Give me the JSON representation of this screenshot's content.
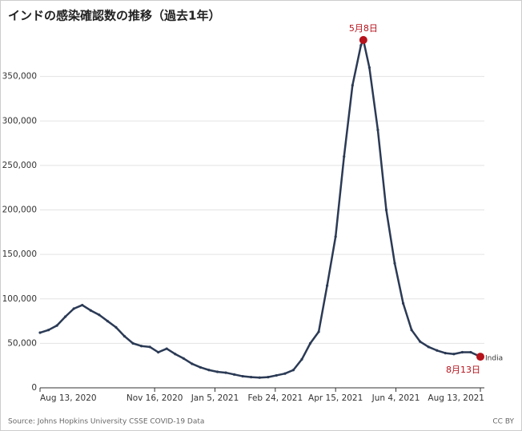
{
  "chart_data": {
    "type": "line",
    "title": "インドの感染確認数の推移（過去1年）",
    "source": "Source: Johns Hopkins University CSSE COVID-19 Data",
    "license": "CC BY",
    "xlim": [
      "2020-08-13",
      "2021-08-13"
    ],
    "xticks": [
      {
        "value": "2020-08-13",
        "label": "Aug 13, 2020"
      },
      {
        "value": "2020-11-16",
        "label": "Nov 16, 2020"
      },
      {
        "value": "2021-01-05",
        "label": "Jan 5, 2021"
      },
      {
        "value": "2021-02-24",
        "label": "Feb 24, 2021"
      },
      {
        "value": "2021-04-15",
        "label": "Apr 15, 2021"
      },
      {
        "value": "2021-06-04",
        "label": "Jun 4, 2021"
      },
      {
        "value": "2021-08-13",
        "label": "Aug 13, 2021"
      }
    ],
    "ylim": [
      0,
      400000
    ],
    "yticks": [
      0,
      {
        "value": 50000,
        "label": "50,000"
      },
      {
        "value": 100000,
        "label": "100,000"
      },
      {
        "value": 150000,
        "label": "150,000"
      },
      {
        "value": 200000,
        "label": "200,000"
      },
      {
        "value": 250000,
        "label": "250,000"
      },
      {
        "value": 300000,
        "label": "300,000"
      },
      {
        "value": 350000,
        "label": "350,000"
      }
    ],
    "grid": true,
    "x": [
      "2020-08-13",
      "2020-08-20",
      "2020-08-27",
      "2020-09-03",
      "2020-09-10",
      "2020-09-17",
      "2020-09-24",
      "2020-10-01",
      "2020-10-08",
      "2020-10-15",
      "2020-10-22",
      "2020-10-29",
      "2020-11-05",
      "2020-11-12",
      "2020-11-19",
      "2020-11-26",
      "2020-12-03",
      "2020-12-10",
      "2020-12-17",
      "2020-12-24",
      "2020-12-31",
      "2021-01-07",
      "2021-01-14",
      "2021-01-21",
      "2021-01-28",
      "2021-02-04",
      "2021-02-11",
      "2021-02-18",
      "2021-02-25",
      "2021-03-04",
      "2021-03-11",
      "2021-03-18",
      "2021-03-25",
      "2021-04-01",
      "2021-04-08",
      "2021-04-15",
      "2021-04-22",
      "2021-04-29",
      "2021-05-06",
      "2021-05-08",
      "2021-05-13",
      "2021-05-20",
      "2021-05-27",
      "2021-06-03",
      "2021-06-10",
      "2021-06-17",
      "2021-06-24",
      "2021-07-01",
      "2021-07-08",
      "2021-07-15",
      "2021-07-22",
      "2021-07-29",
      "2021-08-05",
      "2021-08-13"
    ],
    "series": [
      {
        "name": "India",
        "color": "#2b3a55",
        "values": [
          62000,
          65000,
          70000,
          80000,
          89000,
          93000,
          87000,
          82000,
          75000,
          68000,
          58000,
          50000,
          47000,
          46000,
          40000,
          44000,
          38000,
          33000,
          27000,
          23000,
          20000,
          18000,
          17000,
          15000,
          13000,
          12000,
          11500,
          12000,
          14000,
          16000,
          20000,
          32000,
          50000,
          63000,
          115000,
          170000,
          260000,
          340000,
          385000,
          391000,
          360000,
          290000,
          200000,
          140000,
          95000,
          65000,
          52000,
          46000,
          42000,
          39000,
          38000,
          40000,
          40000,
          35000
        ]
      }
    ],
    "annotations": [
      {
        "text": "5月8日",
        "x": "2021-05-08"
      },
      {
        "text": "8月13日",
        "x": "2021-08-13"
      }
    ],
    "highlight_color": "#b5121b"
  }
}
